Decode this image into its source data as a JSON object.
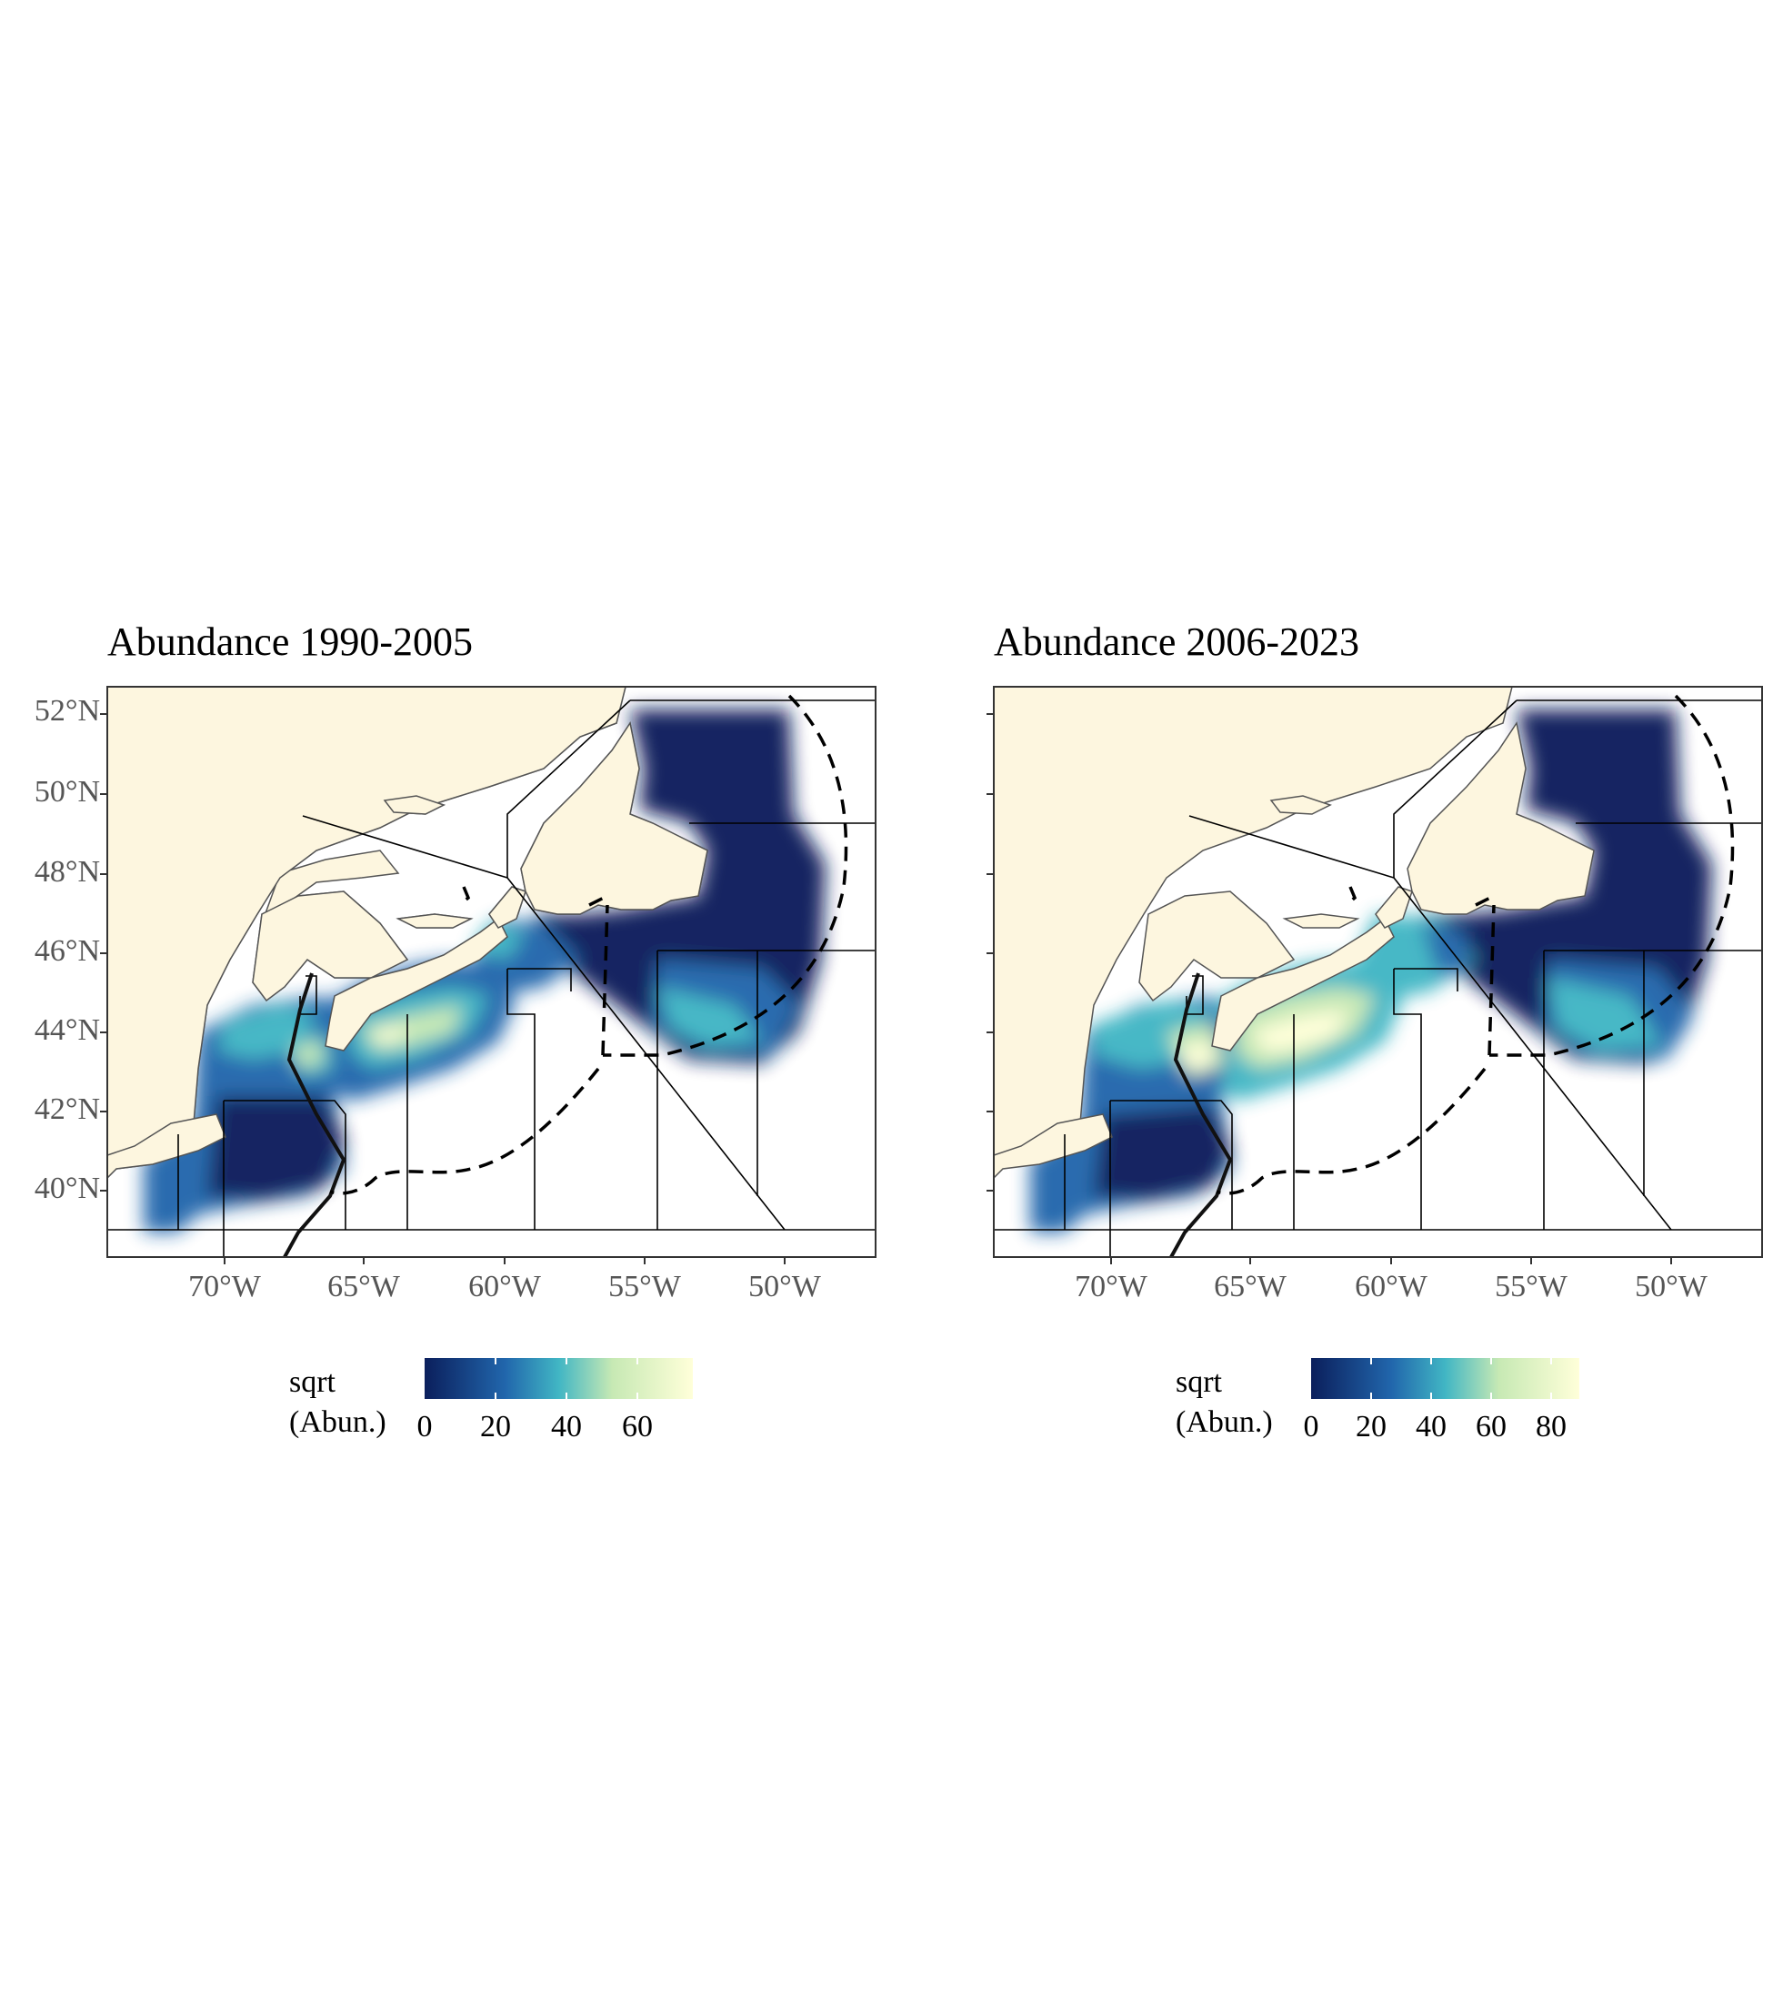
{
  "panels": [
    {
      "title": "Abundance 1990-2005",
      "legend": {
        "title_line1": "sqrt",
        "title_line2": "(Abun.)",
        "ticks": [
          "0",
          "20",
          "40",
          "60"
        ],
        "max": 75
      }
    },
    {
      "title": "Abundance 2006-2023",
      "legend": {
        "title_line1": "sqrt",
        "title_line2": "(Abun.)",
        "ticks": [
          "0",
          "20",
          "40",
          "60",
          "80"
        ],
        "max": 90
      }
    }
  ],
  "axes": {
    "lat_labels": [
      "52°N",
      "50°N",
      "48°N",
      "46°N",
      "44°N",
      "42°N",
      "40°N"
    ],
    "lon_labels": [
      "70°W",
      "65°W",
      "60°W",
      "55°W",
      "50°W"
    ]
  },
  "colors": {
    "land": "#fdf6df",
    "water": "#ffffff",
    "scale": [
      "#0b1f5c",
      "#2166ac",
      "#41b6c4",
      "#c7e9b4",
      "#ffffd9"
    ]
  }
}
